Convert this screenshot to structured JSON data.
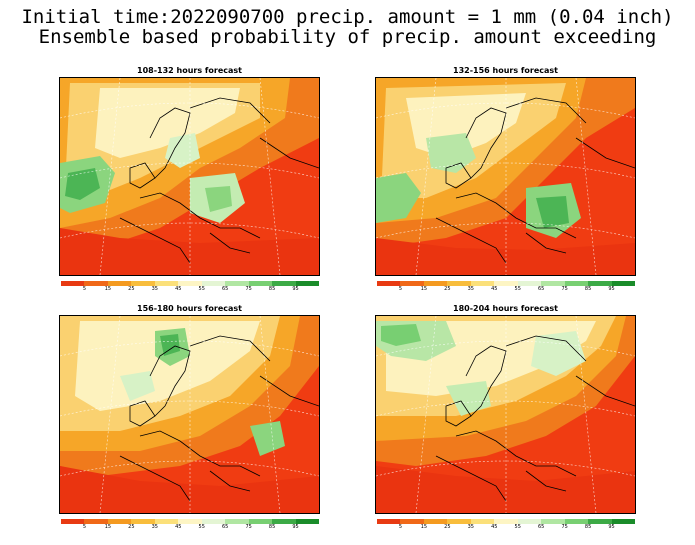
{
  "title": {
    "line1": "Initial time:2022090700 precip. amount = 1 mm (0.04 inch)",
    "line2": "Ensemble based probability of precip. amount exceeding"
  },
  "panels": [
    {
      "id": "p1",
      "title": "108-132 hours forecast"
    },
    {
      "id": "p2",
      "title": "132-156 hours forecast"
    },
    {
      "id": "p3",
      "title": "156-180 hours forecast"
    },
    {
      "id": "p4",
      "title": "180-204 hours forecast"
    }
  ],
  "colorbar": {
    "colors": [
      "#e83a12",
      "#f06818",
      "#f49a20",
      "#f8bd3c",
      "#fbe07a",
      "#fdf5c4",
      "#e4f5d4",
      "#b0e6a2",
      "#78cf72",
      "#3caa46",
      "#1a8c2a"
    ],
    "labels": [
      "5",
      "15",
      "25",
      "35",
      "45",
      "55",
      "65",
      "75",
      "85",
      "95"
    ]
  }
}
